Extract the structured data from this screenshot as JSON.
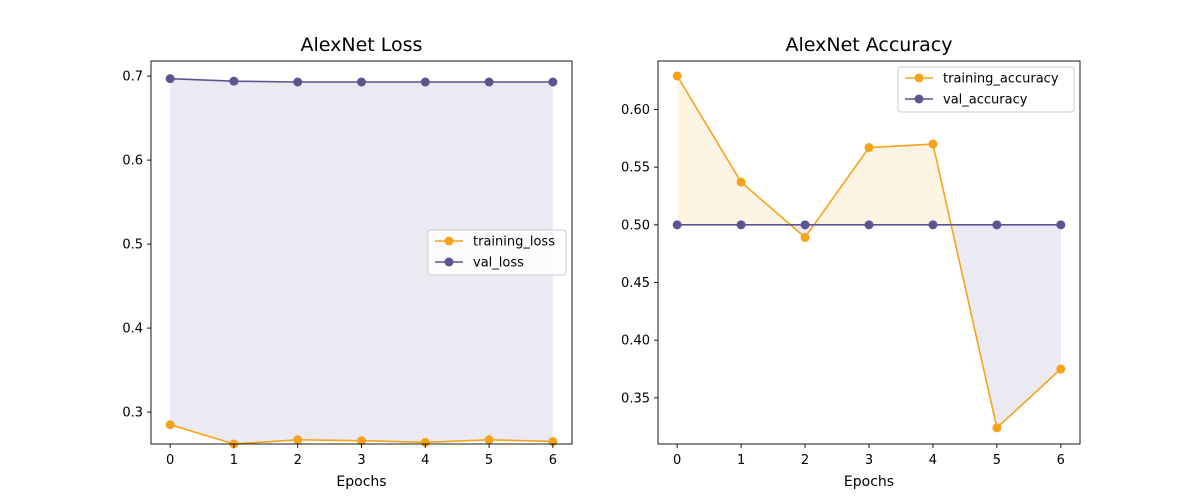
{
  "chart_data": [
    {
      "type": "line",
      "title": "AlexNet Loss",
      "xlabel": "Epochs",
      "ylabel": "",
      "x": [
        0,
        1,
        2,
        3,
        4,
        5,
        6
      ],
      "xlim": [
        -0.3,
        6.3
      ],
      "ylim": [
        0.262,
        0.718
      ],
      "xticks": [
        0,
        1,
        2,
        3,
        4,
        5,
        6
      ],
      "yticks": [
        0.3,
        0.4,
        0.5,
        0.6,
        0.7
      ],
      "ytick_decimals": 1,
      "grid": false,
      "legend_position": "center-right",
      "fill_between": true,
      "series": [
        {
          "name": "training_loss",
          "color": "#f5a31a",
          "values": [
            0.285,
            0.262,
            0.267,
            0.266,
            0.264,
            0.267,
            0.265
          ]
        },
        {
          "name": "val_loss",
          "color": "#5d5492",
          "values": [
            0.697,
            0.694,
            0.693,
            0.693,
            0.693,
            0.693,
            0.693
          ]
        }
      ]
    },
    {
      "type": "line",
      "title": "AlexNet Accuracy",
      "xlabel": "Epochs",
      "ylabel": "",
      "x": [
        0,
        1,
        2,
        3,
        4,
        5,
        6
      ],
      "xlim": [
        -0.3,
        6.3
      ],
      "ylim": [
        0.31,
        0.642
      ],
      "xticks": [
        0,
        1,
        2,
        3,
        4,
        5,
        6
      ],
      "yticks": [
        0.35,
        0.4,
        0.45,
        0.5,
        0.55,
        0.6
      ],
      "ytick_decimals": 2,
      "grid": false,
      "legend_position": "top-right",
      "fill_between": true,
      "series": [
        {
          "name": "training_accuracy",
          "color": "#f5a31a",
          "values": [
            0.629,
            0.537,
            0.489,
            0.567,
            0.57,
            0.324,
            0.375
          ]
        },
        {
          "name": "val_accuracy",
          "color": "#5d5492",
          "values": [
            0.5,
            0.5,
            0.5,
            0.5,
            0.5,
            0.5,
            0.5
          ]
        }
      ]
    }
  ]
}
